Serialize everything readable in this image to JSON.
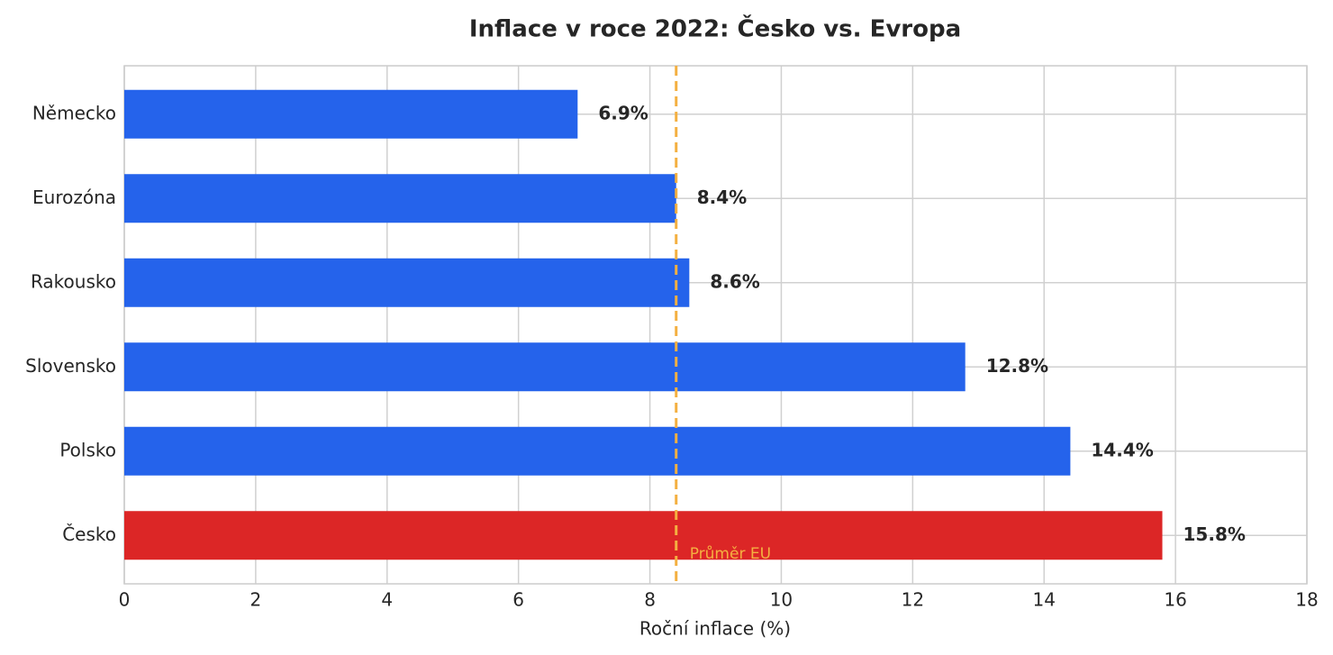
{
  "chart_data": {
    "type": "barh",
    "title": "Inflace v roce 2022: Česko vs. Evropa",
    "xlabel": "Roční inflace (%)",
    "categories": [
      "Německo",
      "Eurozóna",
      "Rakousko",
      "Slovensko",
      "Polsko",
      "Česko"
    ],
    "values": [
      6.9,
      8.4,
      8.6,
      12.8,
      14.4,
      15.8
    ],
    "value_labels": [
      "6.9%",
      "8.4%",
      "8.6%",
      "12.8%",
      "14.4%",
      "15.8%"
    ],
    "colors": [
      "#2563eb",
      "#2563eb",
      "#2563eb",
      "#2563eb",
      "#2563eb",
      "#dc2626"
    ],
    "xlim": [
      0,
      18
    ],
    "xticks": [
      0,
      2,
      4,
      6,
      8,
      10,
      12,
      14,
      16,
      18
    ],
    "grid": true,
    "reference_line": {
      "value": 8.4,
      "label": "Průměr EU",
      "color": "#f4b041"
    }
  }
}
